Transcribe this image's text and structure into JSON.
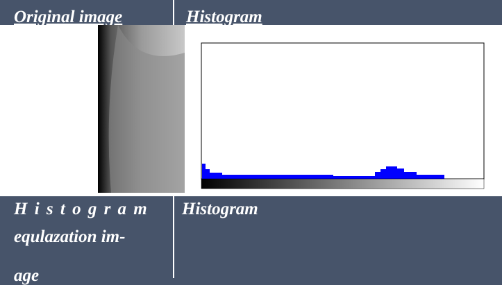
{
  "table": {
    "headers": [
      "Original image",
      "Histogram"
    ],
    "rows": [
      {
        "label_lines": [
          "H i s t o g r a m",
          "equlazation im-",
          "age"
        ],
        "right": "Histogram"
      }
    ]
  }
}
